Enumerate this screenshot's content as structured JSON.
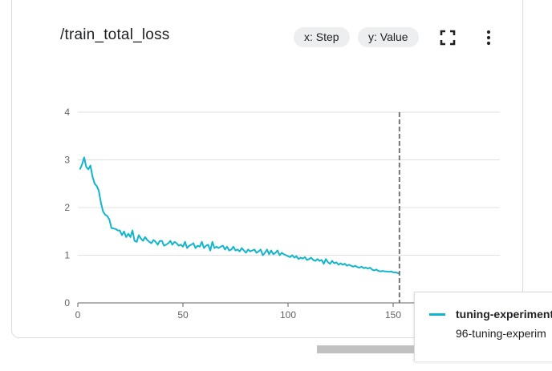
{
  "card": {
    "title": "/train_total_loss",
    "x_chip": "x: Step",
    "y_chip": "y: Value",
    "fullscreen_icon": "fullscreen-icon",
    "more_icon": "more-vert-icon"
  },
  "legend": {
    "line1": "tuning-experiment",
    "line2": "96-tuning-experim",
    "color": "#12b5cb"
  },
  "chart_data": {
    "type": "line",
    "title": "/train_total_loss",
    "xlabel": "",
    "ylabel": "",
    "xlim": [
      0,
      154
    ],
    "ylim": [
      0,
      4
    ],
    "x_ticks": [
      0,
      50,
      100,
      150
    ],
    "y_ticks": [
      0,
      1,
      2,
      3,
      4
    ],
    "grid": true,
    "hover_step": 153,
    "series": [
      {
        "color": "#12b5cb",
        "points": [
          [
            1,
            2.8
          ],
          [
            2,
            2.9
          ],
          [
            3,
            3.05
          ],
          [
            4,
            2.85
          ],
          [
            5,
            2.8
          ],
          [
            6,
            2.88
          ],
          [
            7,
            2.65
          ],
          [
            8,
            2.5
          ],
          [
            9,
            2.45
          ],
          [
            10,
            2.35
          ],
          [
            11,
            2.1
          ],
          [
            12,
            1.92
          ],
          [
            13,
            1.85
          ],
          [
            14,
            1.82
          ],
          [
            15,
            1.75
          ],
          [
            16,
            1.57
          ],
          [
            17,
            1.56
          ],
          [
            18,
            1.55
          ],
          [
            19,
            1.52
          ],
          [
            20,
            1.52
          ],
          [
            21,
            1.42
          ],
          [
            22,
            1.5
          ],
          [
            23,
            1.38
          ],
          [
            24,
            1.45
          ],
          [
            25,
            1.38
          ],
          [
            26,
            1.52
          ],
          [
            27,
            1.3
          ],
          [
            28,
            1.28
          ],
          [
            29,
            1.42
          ],
          [
            30,
            1.35
          ],
          [
            31,
            1.3
          ],
          [
            32,
            1.38
          ],
          [
            33,
            1.32
          ],
          [
            34,
            1.28
          ],
          [
            35,
            1.25
          ],
          [
            36,
            1.32
          ],
          [
            37,
            1.28
          ],
          [
            38,
            1.22
          ],
          [
            39,
            1.3
          ],
          [
            40,
            1.3
          ],
          [
            41,
            1.2
          ],
          [
            42,
            1.22
          ],
          [
            43,
            1.25
          ],
          [
            44,
            1.3
          ],
          [
            45,
            1.22
          ],
          [
            46,
            1.28
          ],
          [
            47,
            1.25
          ],
          [
            48,
            1.2
          ],
          [
            49,
            1.22
          ],
          [
            50,
            1.18
          ],
          [
            51,
            1.28
          ],
          [
            52,
            1.15
          ],
          [
            53,
            1.2
          ],
          [
            54,
            1.22
          ],
          [
            55,
            1.25
          ],
          [
            56,
            1.15
          ],
          [
            57,
            1.2
          ],
          [
            58,
            1.18
          ],
          [
            59,
            1.28
          ],
          [
            60,
            1.15
          ],
          [
            61,
            1.2
          ],
          [
            62,
            1.22
          ],
          [
            63,
            1.1
          ],
          [
            64,
            1.28
          ],
          [
            65,
            1.15
          ],
          [
            66,
            1.18
          ],
          [
            67,
            1.15
          ],
          [
            68,
            1.18
          ],
          [
            69,
            1.2
          ],
          [
            70,
            1.12
          ],
          [
            71,
            1.18
          ],
          [
            72,
            1.1
          ],
          [
            73,
            1.12
          ],
          [
            74,
            1.18
          ],
          [
            75,
            1.1
          ],
          [
            76,
            1.12
          ],
          [
            77,
            1.08
          ],
          [
            78,
            1.15
          ],
          [
            79,
            1.1
          ],
          [
            80,
            1.05
          ],
          [
            81,
            1.12
          ],
          [
            82,
            1.08
          ],
          [
            83,
            1.1
          ],
          [
            84,
            1.12
          ],
          [
            85,
            1.05
          ],
          [
            86,
            1.08
          ],
          [
            87,
            1.12
          ],
          [
            88,
            1.0
          ],
          [
            89,
            1.05
          ],
          [
            90,
            1.12
          ],
          [
            91,
            1.02
          ],
          [
            92,
            1.1
          ],
          [
            93,
            1.02
          ],
          [
            94,
            1.05
          ],
          [
            95,
            1.1
          ],
          [
            96,
            1.0
          ],
          [
            97,
            1.05
          ],
          [
            98,
            1.02
          ],
          [
            99,
            1.0
          ],
          [
            100,
            0.98
          ],
          [
            101,
            0.96
          ],
          [
            102,
            1.0
          ],
          [
            103,
            0.95
          ],
          [
            104,
            0.98
          ],
          [
            105,
            0.92
          ],
          [
            106,
            0.95
          ],
          [
            107,
            0.93
          ],
          [
            108,
            0.96
          ],
          [
            109,
            0.9
          ],
          [
            110,
            0.92
          ],
          [
            111,
            0.95
          ],
          [
            112,
            0.9
          ],
          [
            113,
            0.88
          ],
          [
            114,
            0.92
          ],
          [
            115,
            0.88
          ],
          [
            116,
            0.9
          ],
          [
            117,
            0.82
          ],
          [
            118,
            0.92
          ],
          [
            119,
            0.85
          ],
          [
            120,
            0.82
          ],
          [
            121,
            0.88
          ],
          [
            122,
            0.83
          ],
          [
            123,
            0.85
          ],
          [
            124,
            0.8
          ],
          [
            125,
            0.83
          ],
          [
            126,
            0.8
          ],
          [
            127,
            0.82
          ],
          [
            128,
            0.78
          ],
          [
            129,
            0.8
          ],
          [
            130,
            0.78
          ],
          [
            131,
            0.76
          ],
          [
            132,
            0.78
          ],
          [
            133,
            0.75
          ],
          [
            134,
            0.74
          ],
          [
            135,
            0.76
          ],
          [
            136,
            0.73
          ],
          [
            137,
            0.74
          ],
          [
            138,
            0.72
          ],
          [
            139,
            0.74
          ],
          [
            140,
            0.7
          ],
          [
            141,
            0.68
          ],
          [
            142,
            0.7
          ],
          [
            143,
            0.67
          ],
          [
            144,
            0.66
          ],
          [
            145,
            0.67
          ],
          [
            146,
            0.66
          ],
          [
            147,
            0.66
          ],
          [
            148,
            0.65
          ],
          [
            149,
            0.66
          ],
          [
            150,
            0.64
          ],
          [
            151,
            0.64
          ],
          [
            152,
            0.63
          ],
          [
            153,
            0.61
          ]
        ]
      }
    ]
  }
}
